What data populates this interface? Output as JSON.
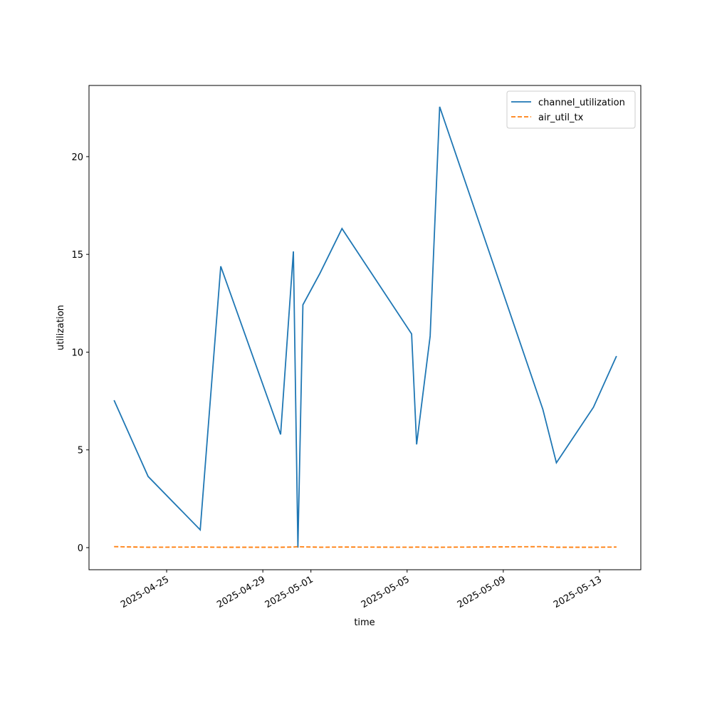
{
  "chart_data": {
    "type": "line",
    "x_label": "time",
    "y_label": "utilization",
    "x": [
      "2025-04-22T19:30",
      "2025-04-24T05:30",
      "2025-04-26T09:30",
      "2025-04-27T06:00",
      "2025-04-29T17:45",
      "2025-04-30T06:30",
      "2025-04-30T11:00",
      "2025-04-30T16:00",
      "2025-05-01T09:00",
      "2025-05-02T07:00",
      "2025-05-05T04:30",
      "2025-05-05T09:30",
      "2025-05-05T23:00",
      "2025-05-06T08:30",
      "2025-05-10T15:30",
      "2025-05-11T05:00",
      "2025-05-12T18:00",
      "2025-05-13T17:00"
    ],
    "series": [
      {
        "name": "channel_utilization",
        "color": "#1f77b4",
        "dash": "solid",
        "values": [
          7.54,
          3.64,
          0.91,
          14.39,
          5.79,
          15.15,
          0.0,
          12.42,
          14.03,
          16.32,
          10.93,
          5.28,
          10.82,
          22.55,
          7.07,
          4.34,
          7.18,
          9.8
        ]
      },
      {
        "name": "air_util_tx",
        "color": "#ff7f0e",
        "dash": "dashed",
        "values": [
          0.05,
          0.02,
          0.03,
          0.02,
          0.02,
          0.03,
          0.05,
          0.04,
          0.02,
          0.03,
          0.02,
          0.03,
          0.02,
          0.02,
          0.05,
          0.02,
          0.02,
          0.03
        ]
      }
    ],
    "xlim": [
      "2025-04-21T18:30",
      "2025-05-14T17:15"
    ],
    "xticks": [
      "2025-04-25",
      "2025-04-29",
      "2025-05-01",
      "2025-05-05",
      "2025-05-09",
      "2025-05-13"
    ],
    "ylim": [
      -1.13,
      23.64
    ],
    "yticks": [
      0,
      5,
      10,
      15,
      20
    ],
    "legend": "upper right"
  }
}
